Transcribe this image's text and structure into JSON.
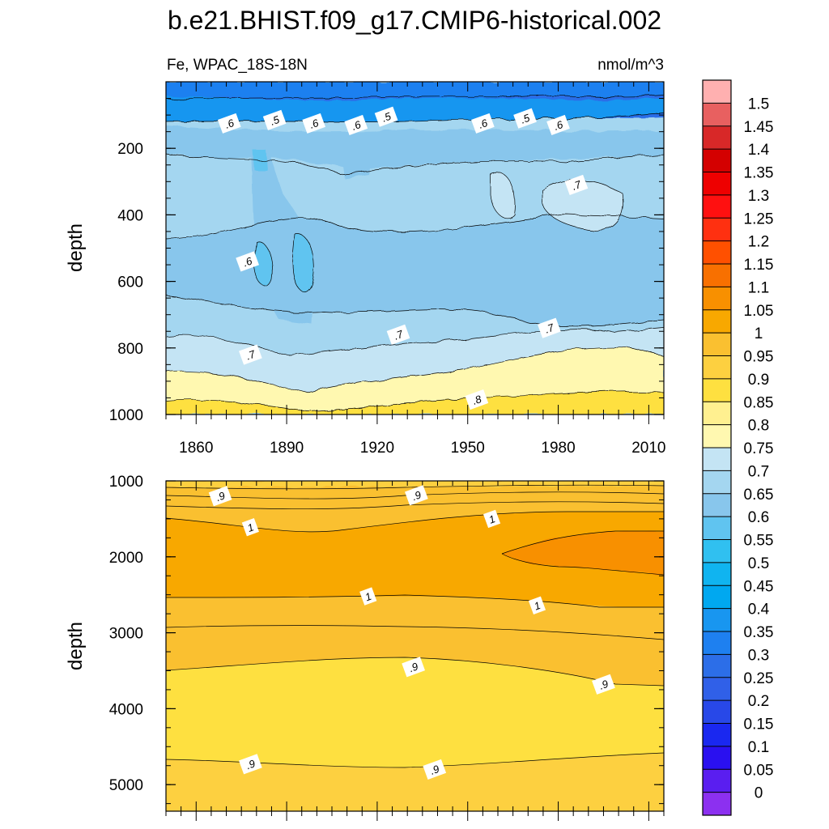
{
  "chart_data": {
    "type": "contour",
    "title": "b.e21.BHIST.f09_g17.CMIP6-historical.002",
    "variable_label": "Fe, WPAC_18S-18N",
    "units": "nmol/m^3",
    "colorbar": {
      "levels": [
        "0",
        "0.05",
        "0.1",
        "0.15",
        "0.2",
        "0.25",
        "0.3",
        "0.35",
        "0.4",
        "0.45",
        "0.5",
        "0.55",
        "0.6",
        "0.65",
        "0.7",
        "0.75",
        "0.8",
        "0.85",
        "0.9",
        "0.95",
        "1",
        "1.05",
        "1.1",
        "1.15",
        "1.2",
        "1.25",
        "1.3",
        "1.35",
        "1.4",
        "1.45",
        "1.5"
      ],
      "colors": [
        "#8c30f0",
        "#5a1ef0",
        "#2a10f0",
        "#1a28f0",
        "#2848e8",
        "#3060e8",
        "#2c6ee8",
        "#1e80f0",
        "#1896f0",
        "#00a8f0",
        "#10b4f0",
        "#30c0f0",
        "#60c4f0",
        "#88c6ec",
        "#a4d6f0",
        "#c4e4f4",
        "#fff8b0",
        "#fff090",
        "#fee040",
        "#fdd040",
        "#fac030",
        "#f8a800",
        "#f89000",
        "#f87000",
        "#ff5000",
        "#ff3010",
        "#ff1010",
        "#ee0000",
        "#d40000",
        "#d82828",
        "#e86060",
        "#ffb0b0"
      ]
    },
    "panels": [
      {
        "name": "upper",
        "ylabel": "depth",
        "y_range": [
          0,
          1000
        ],
        "y_ticks": [
          "200",
          "400",
          "600",
          "800",
          "1000"
        ],
        "x_range": [
          1850,
          2015
        ],
        "x_ticks": [
          "1860",
          "1890",
          "1920",
          "1950",
          "1980",
          "2010"
        ],
        "contour_labels": [
          {
            "text": ".6",
            "year": 1871,
            "depth": 125
          },
          {
            "text": ".5",
            "year": 1886,
            "depth": 115
          },
          {
            "text": ".6",
            "year": 1899,
            "depth": 125
          },
          {
            "text": ".6",
            "year": 1913,
            "depth": 130
          },
          {
            "text": ".5",
            "year": 1923,
            "depth": 105
          },
          {
            "text": ".6",
            "year": 1955,
            "depth": 125
          },
          {
            "text": ".5",
            "year": 1969,
            "depth": 110
          },
          {
            "text": ".6",
            "year": 1980,
            "depth": 130
          },
          {
            "text": ".7",
            "year": 1986,
            "depth": 310
          },
          {
            "text": ".6",
            "year": 1877,
            "depth": 540
          },
          {
            "text": ".7",
            "year": 1927,
            "depth": 760
          },
          {
            "text": ".7",
            "year": 1977,
            "depth": 740
          },
          {
            "text": ".7",
            "year": 1878,
            "depth": 820
          },
          {
            "text": ".8",
            "year": 1953,
            "depth": 955
          }
        ]
      },
      {
        "name": "lower",
        "ylabel": "depth",
        "y_range": [
          1000,
          5350
        ],
        "y_ticks": [
          "1000",
          "2000",
          "3000",
          "4000",
          "5000"
        ],
        "x_range": [
          1850,
          2015
        ],
        "contour_labels": [
          {
            "text": ".9",
            "year": 1868,
            "depth": 1200
          },
          {
            "text": ".9",
            "year": 1933,
            "depth": 1190
          },
          {
            "text": "1",
            "year": 1878,
            "depth": 1610
          },
          {
            "text": "1",
            "year": 1958,
            "depth": 1500
          },
          {
            "text": "1",
            "year": 1917,
            "depth": 2520
          },
          {
            "text": "1",
            "year": 1973,
            "depth": 2640
          },
          {
            "text": ".9",
            "year": 1932,
            "depth": 3450
          },
          {
            "text": ".9",
            "year": 1995,
            "depth": 3680
          },
          {
            "text": ".9",
            "year": 1878,
            "depth": 4730
          },
          {
            "text": ".9",
            "year": 1939,
            "depth": 4800
          }
        ]
      }
    ]
  }
}
